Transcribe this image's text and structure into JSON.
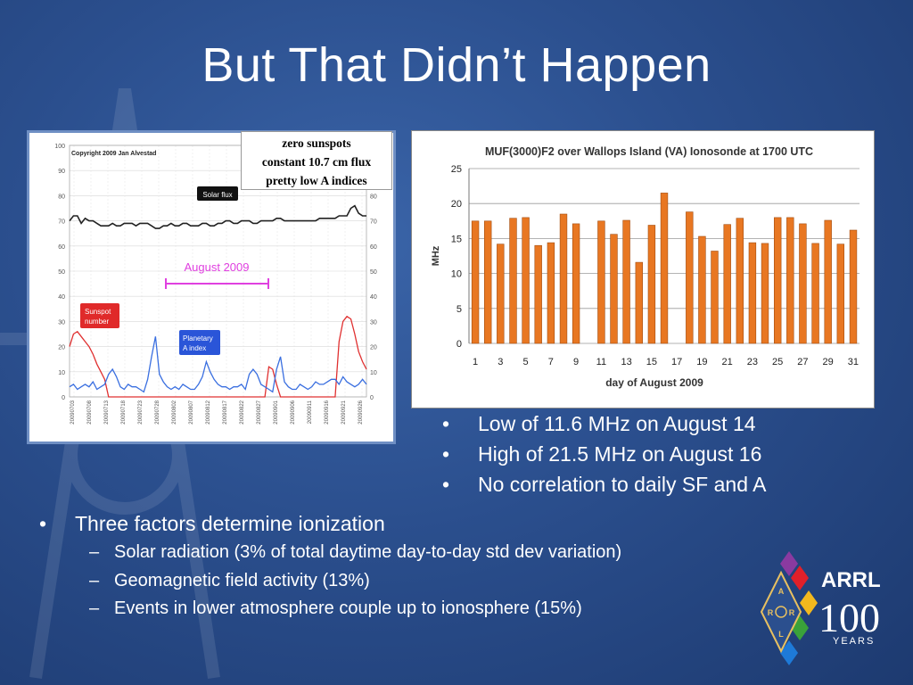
{
  "slide": {
    "title": "But That Didn’t Happen"
  },
  "left_chart": {
    "copyright": "Copyright 2009 Jan Alvestad",
    "solar_flux_label": "Solar flux",
    "august_label": "August 2009",
    "sunspot_label_1": "Sunspot",
    "sunspot_label_2": "number",
    "planetary_label_1": "Planetary",
    "planetary_label_2": "A index",
    "y_ticks": [
      "0",
      "10",
      "20",
      "30",
      "40",
      "50",
      "60",
      "70",
      "80",
      "90",
      "100"
    ],
    "x_ticks": [
      "20090703",
      "20090708",
      "20090713",
      "20090718",
      "20090723",
      "20090728",
      "20090802",
      "20090807",
      "20090812",
      "20090817",
      "20090822",
      "20090827",
      "20090901",
      "20090906",
      "20090911",
      "20090916",
      "20090921",
      "20090926"
    ],
    "solar_flux": [
      70,
      72,
      72,
      69,
      71,
      70,
      70,
      69,
      68,
      68,
      68,
      69,
      68,
      68,
      69,
      69,
      69,
      68,
      69,
      69,
      69,
      68,
      67,
      67,
      68,
      68,
      69,
      68,
      68,
      69,
      69,
      68,
      68,
      68,
      69,
      69,
      68,
      68,
      69,
      69,
      70,
      70,
      69,
      69,
      70,
      70,
      70,
      69,
      69,
      70,
      70,
      70,
      70,
      71,
      71,
      70,
      70,
      70,
      70,
      70,
      70,
      70,
      70,
      70,
      71,
      71,
      71,
      71,
      71,
      72,
      72,
      72,
      75,
      76,
      73,
      72,
      72
    ],
    "sunspots": [
      20,
      25,
      26,
      24,
      22,
      20,
      17,
      13,
      10,
      7,
      0,
      0,
      0,
      0,
      0,
      0,
      0,
      0,
      0,
      0,
      0,
      0,
      0,
      0,
      0,
      0,
      0,
      0,
      0,
      0,
      0,
      0,
      0,
      0,
      0,
      0,
      0,
      0,
      0,
      0,
      0,
      0,
      0,
      0,
      0,
      0,
      0,
      0,
      0,
      0,
      0,
      12,
      11,
      5,
      0,
      0,
      0,
      0,
      0,
      0,
      0,
      0,
      0,
      0,
      0,
      0,
      0,
      0,
      0,
      22,
      30,
      32,
      31,
      25,
      18,
      14,
      11
    ],
    "a_index": [
      4,
      5,
      3,
      4,
      5,
      4,
      6,
      3,
      4,
      5,
      9,
      11,
      8,
      4,
      3,
      5,
      4,
      4,
      3,
      2,
      7,
      16,
      24,
      9,
      6,
      4,
      3,
      4,
      3,
      5,
      4,
      3,
      3,
      5,
      8,
      14,
      10,
      7,
      5,
      4,
      4,
      3,
      4,
      4,
      5,
      3,
      9,
      11,
      9,
      5,
      4,
      3,
      2,
      11,
      16,
      6,
      4,
      3,
      3,
      5,
      4,
      3,
      4,
      6,
      5,
      5,
      6,
      7,
      7,
      5,
      8,
      6,
      5,
      4,
      5,
      7,
      5
    ]
  },
  "note": {
    "line1": "zero sunspots",
    "line2": "constant 10.7 cm flux",
    "line3": "pretty low A indices"
  },
  "chart_data": {
    "type": "bar",
    "title": "MUF(3000)F2 over Wallops Island (VA) Ionosonde at 1700 UTC",
    "xlabel": "day of August 2009",
    "ylabel": "MHz",
    "ylim": [
      0,
      25
    ],
    "y_ticks": [
      "0",
      "5",
      "10",
      "15",
      "20",
      "25"
    ],
    "x_tick_labels": [
      "1",
      "3",
      "5",
      "7",
      "9",
      "11",
      "13",
      "15",
      "17",
      "19",
      "21",
      "23",
      "25",
      "27",
      "29",
      "31"
    ],
    "categories": [
      1,
      2,
      3,
      4,
      5,
      6,
      7,
      8,
      9,
      10,
      11,
      12,
      13,
      14,
      15,
      16,
      17,
      18,
      19,
      20,
      21,
      22,
      23,
      24,
      25,
      26,
      27,
      28,
      29,
      30,
      31
    ],
    "values": [
      17.5,
      17.5,
      14.2,
      17.9,
      18.0,
      14.0,
      14.4,
      18.5,
      17.1,
      null,
      17.5,
      15.6,
      17.6,
      11.6,
      16.9,
      21.5,
      null,
      18.8,
      15.3,
      13.2,
      17.0,
      17.9,
      14.4,
      14.3,
      18.0,
      18.0,
      17.1,
      14.3,
      17.6,
      14.2,
      16.2
    ],
    "bar_color": "#e87722",
    "grid": true
  },
  "bullets_right": [
    "Low of 11.6 MHz on August 14",
    "High of 21.5 MHz on August 16",
    "No correlation to daily SF and A"
  ],
  "main_bullet": "Three factors determine ionization",
  "sub_bullets": [
    "Solar radiation (3% of total daytime day-to-day std dev variation)",
    "Geomagnetic field activity (13%)",
    "Events in lower atmosphere couple up to ionosphere (15%)"
  ],
  "logo": {
    "name": "ARRL",
    "number": "100",
    "years": "YEARS",
    "emblem_letters": [
      "A",
      "R",
      "R",
      "L"
    ]
  }
}
